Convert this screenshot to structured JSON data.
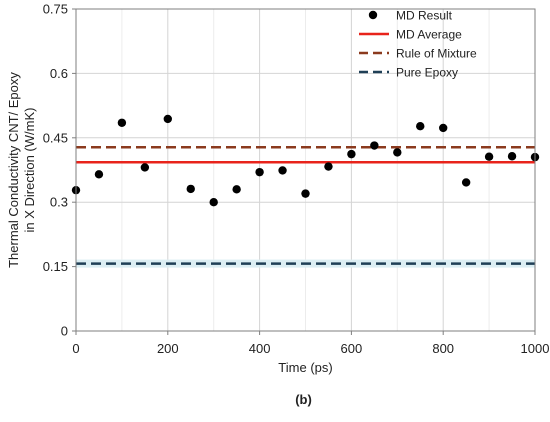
{
  "chart_data": {
    "type": "scatter",
    "xlabel": "Time (ps)",
    "ylabel_lines": [
      "Thermal Conductivity CNT/ Epoxy",
      "in X Direction  (W/mK)"
    ],
    "panel_label": "(b)",
    "xlim": [
      0,
      1000
    ],
    "ylim": [
      0,
      0.75
    ],
    "x_ticks": [
      0,
      200,
      400,
      600,
      800,
      1000
    ],
    "x_tick_labels": [
      "0",
      "200",
      "400",
      "600",
      "800",
      "1000"
    ],
    "x_minor_grid": [
      100,
      300,
      500,
      700,
      900
    ],
    "y_ticks": [
      0,
      0.15,
      0.3,
      0.45,
      0.6,
      0.75
    ],
    "y_tick_labels": [
      "0",
      "0.15",
      "0.3",
      "0.45",
      "0.6",
      "0.75"
    ],
    "grid": true,
    "legend_position": "top-right",
    "series": [
      {
        "name": "MD Result",
        "kind": "points",
        "color": "#000000",
        "x": [
          0,
          50,
          100,
          150,
          200,
          250,
          300,
          350,
          400,
          450,
          500,
          550,
          600,
          650,
          700,
          750,
          800,
          850,
          900,
          950,
          1000
        ],
        "y": [
          0.328,
          0.365,
          0.485,
          0.381,
          0.494,
          0.331,
          0.3,
          0.33,
          0.37,
          0.374,
          0.32,
          0.383,
          0.412,
          0.432,
          0.416,
          0.477,
          0.473,
          0.346,
          0.406,
          0.407,
          0.405
        ]
      },
      {
        "name": "MD Average",
        "kind": "hline",
        "color": "#e8231b",
        "dash": "solid",
        "y": 0.393
      },
      {
        "name": "Rule of Mixture",
        "kind": "hline",
        "color": "#8b3a1e",
        "dash": "dashed",
        "y": 0.428
      },
      {
        "name": "Pure Epoxy",
        "kind": "hline",
        "color": "#1f3f56",
        "dash": "dashed",
        "y": 0.157,
        "band_color": "#dceef3"
      }
    ]
  }
}
